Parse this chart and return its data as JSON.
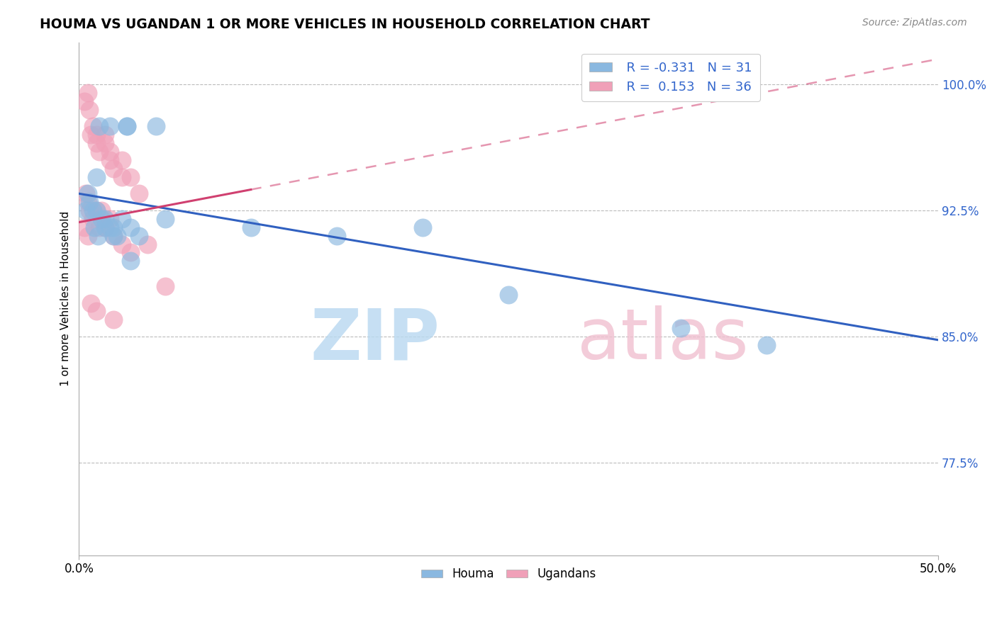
{
  "title": "HOUMA VS UGANDAN 1 OR MORE VEHICLES IN HOUSEHOLD CORRELATION CHART",
  "source_text": "Source: ZipAtlas.com",
  "ylabel": "1 or more Vehicles in Household",
  "xlim": [
    0.0,
    50.0
  ],
  "ylim": [
    72.0,
    102.5
  ],
  "yticks": [
    77.5,
    85.0,
    92.5,
    100.0
  ],
  "ytick_labels": [
    "77.5%",
    "85.0%",
    "92.5%",
    "100.0%"
  ],
  "houma_color": "#8ab8e0",
  "ugandan_color": "#f0a0b8",
  "houma_R": -0.331,
  "houma_N": 31,
  "ugandan_R": 0.153,
  "ugandan_N": 36,
  "houma_line_color": "#3060c0",
  "ugandan_line_color": "#d04070",
  "houma_line_y0": 93.5,
  "houma_line_y50": 84.8,
  "ugandan_line_y0": 91.8,
  "ugandan_line_y50": 101.5,
  "ugandan_solid_xend": 10.0,
  "houma_points_x": [
    1.2,
    1.8,
    2.8,
    2.8,
    4.5,
    1.0,
    0.5,
    0.6,
    0.8,
    1.0,
    1.3,
    1.5,
    1.5,
    1.8,
    2.0,
    2.2,
    2.5,
    3.0,
    3.5,
    5.0,
    10.0,
    15.0,
    20.0,
    25.0,
    35.0,
    40.0,
    0.4,
    0.9,
    1.1,
    2.0,
    3.0
  ],
  "houma_points_y": [
    97.5,
    97.5,
    97.5,
    97.5,
    97.5,
    94.5,
    93.5,
    93.0,
    92.5,
    92.5,
    92.0,
    92.0,
    91.5,
    91.5,
    91.0,
    91.0,
    92.0,
    91.5,
    91.0,
    92.0,
    91.5,
    91.0,
    91.5,
    87.5,
    85.5,
    84.5,
    92.5,
    91.5,
    91.0,
    91.5,
    89.5
  ],
  "ugandan_points_x": [
    0.3,
    0.5,
    0.6,
    0.7,
    0.8,
    1.0,
    1.0,
    1.2,
    1.5,
    1.5,
    1.8,
    1.8,
    2.0,
    2.5,
    2.5,
    3.0,
    3.5,
    0.4,
    0.5,
    0.6,
    0.8,
    1.0,
    1.2,
    1.3,
    1.5,
    1.8,
    2.0,
    2.5,
    3.0,
    4.0,
    0.3,
    0.5,
    0.7,
    1.0,
    2.0,
    5.0
  ],
  "ugandan_points_y": [
    99.0,
    99.5,
    98.5,
    97.0,
    97.5,
    96.5,
    97.0,
    96.0,
    96.5,
    97.0,
    95.5,
    96.0,
    95.0,
    94.5,
    95.5,
    94.5,
    93.5,
    93.5,
    93.0,
    92.5,
    92.0,
    92.5,
    91.5,
    92.5,
    91.5,
    92.0,
    91.0,
    90.5,
    90.0,
    90.5,
    91.5,
    91.0,
    87.0,
    86.5,
    86.0,
    88.0
  ]
}
